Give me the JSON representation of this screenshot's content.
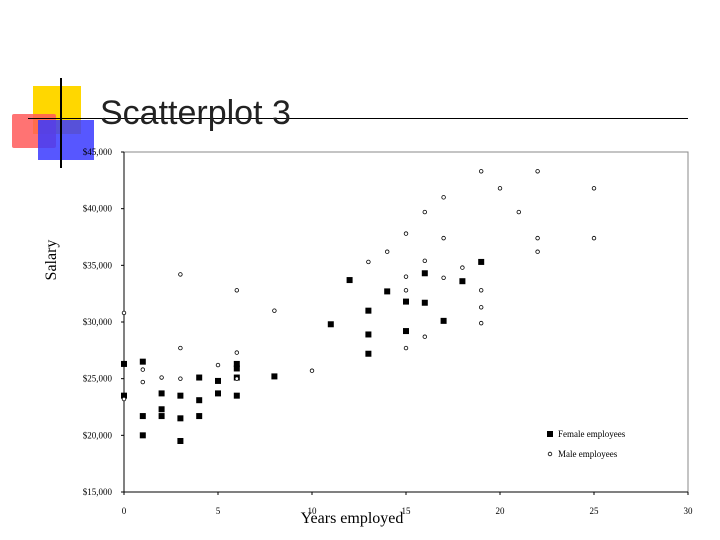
{
  "slide": {
    "title": "Scatterplot 3"
  },
  "chart_data": {
    "type": "scatter",
    "xlabel": "Years employed",
    "ylabel": "Salary",
    "xlim": [
      0,
      30
    ],
    "ylim": [
      15000,
      45000
    ],
    "x_ticks": [
      "0",
      "5",
      "10",
      "15",
      "20",
      "25",
      "30"
    ],
    "y_ticks": [
      "$15,000",
      "$20,000",
      "$25,000",
      "$30,000",
      "$35,000",
      "$40,000",
      "$45,000"
    ],
    "legend_position": "bottom-right",
    "grid": false,
    "series": [
      {
        "name": "Female employees",
        "marker": "filled-square",
        "color": "#000000",
        "points": [
          [
            0,
            26300
          ],
          [
            0,
            23500
          ],
          [
            1,
            26500
          ],
          [
            1,
            21700
          ],
          [
            1,
            20000
          ],
          [
            2,
            23700
          ],
          [
            2,
            22300
          ],
          [
            2,
            21700
          ],
          [
            3,
            23500
          ],
          [
            3,
            21500
          ],
          [
            3,
            19500
          ],
          [
            4,
            25100
          ],
          [
            4,
            23100
          ],
          [
            4,
            21700
          ],
          [
            5,
            24800
          ],
          [
            5,
            23700
          ],
          [
            6,
            26300
          ],
          [
            6,
            25900
          ],
          [
            6,
            25100
          ],
          [
            6,
            23500
          ],
          [
            8,
            25200
          ],
          [
            11,
            29800
          ],
          [
            12,
            33700
          ],
          [
            13,
            31000
          ],
          [
            13,
            28900
          ],
          [
            13,
            27200
          ],
          [
            14,
            32700
          ],
          [
            15,
            31800
          ],
          [
            15,
            29200
          ],
          [
            16,
            34300
          ],
          [
            16,
            31700
          ],
          [
            17,
            30100
          ],
          [
            18,
            33600
          ],
          [
            19,
            35300
          ]
        ]
      },
      {
        "name": "Male employees",
        "marker": "open-circle",
        "color": "#000000",
        "points": [
          [
            0,
            23200
          ],
          [
            0,
            30800
          ],
          [
            1,
            25800
          ],
          [
            1,
            24700
          ],
          [
            2,
            25100
          ],
          [
            3,
            34200
          ],
          [
            3,
            27700
          ],
          [
            3,
            25000
          ],
          [
            5,
            26200
          ],
          [
            6,
            32800
          ],
          [
            6,
            27300
          ],
          [
            6,
            25000
          ],
          [
            8,
            31000
          ],
          [
            10,
            25700
          ],
          [
            13,
            35300
          ],
          [
            14,
            36200
          ],
          [
            15,
            37800
          ],
          [
            15,
            34000
          ],
          [
            15,
            32800
          ],
          [
            15,
            27700
          ],
          [
            16,
            39700
          ],
          [
            16,
            35400
          ],
          [
            16,
            28700
          ],
          [
            17,
            41000
          ],
          [
            17,
            37400
          ],
          [
            17,
            33900
          ],
          [
            18,
            34800
          ],
          [
            19,
            43300
          ],
          [
            19,
            32800
          ],
          [
            19,
            31300
          ],
          [
            19,
            29900
          ],
          [
            20,
            41800
          ],
          [
            21,
            39700
          ],
          [
            22,
            43300
          ],
          [
            22,
            37400
          ],
          [
            22,
            36200
          ],
          [
            25,
            41800
          ],
          [
            25,
            37400
          ]
        ]
      }
    ]
  }
}
